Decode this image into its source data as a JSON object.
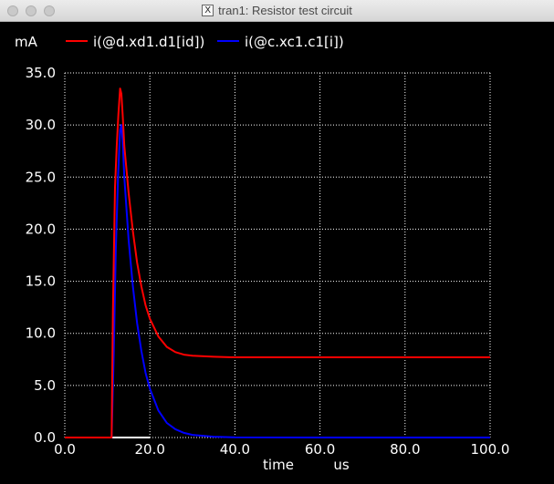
{
  "window": {
    "title": "tran1: Resistor test circuit",
    "x11_glyph": "X",
    "colors": {
      "background": "#000000",
      "text": "#ffffff",
      "titlebar": "#e4e4e4"
    }
  },
  "chart_data": {
    "type": "line",
    "title": "",
    "ylabel": "mA",
    "xlabel": "time",
    "xunit": "us",
    "xlim": [
      0,
      100
    ],
    "ylim": [
      0,
      35
    ],
    "x_ticks": [
      0,
      20,
      40,
      60,
      80,
      100
    ],
    "y_ticks": [
      0,
      5,
      10,
      15,
      20,
      25,
      30,
      35
    ],
    "x_tick_labels": [
      "0.0",
      "20.0",
      "40.0",
      "60.0",
      "80.0",
      "100.0"
    ],
    "y_tick_labels": [
      "0.0",
      "5.0",
      "10.0",
      "15.0",
      "20.0",
      "25.0",
      "30.0",
      "35.0"
    ],
    "grid": true,
    "legend_position": "top",
    "series": [
      {
        "name": "i(@d.xd1.d1[id])",
        "color": "#ff0000",
        "x": [
          0,
          11,
          11.3,
          11.8,
          12.2,
          12.6,
          13.0,
          13.3,
          13.6,
          14,
          15,
          16,
          17,
          18,
          19,
          20,
          22,
          24,
          26,
          28,
          30,
          35,
          40,
          60,
          80,
          100
        ],
        "y": [
          0,
          0,
          12,
          24,
          28,
          31,
          33.5,
          33,
          31,
          28,
          23.5,
          19.8,
          16.8,
          14.5,
          12.7,
          11.4,
          9.7,
          8.7,
          8.2,
          7.95,
          7.85,
          7.75,
          7.7,
          7.7,
          7.7,
          7.7
        ]
      },
      {
        "name": "i(@c.xc1.c1[i])",
        "color": "#0000ff",
        "x": [
          0,
          11,
          11.5,
          12.0,
          12.5,
          13.0,
          13.3,
          13.6,
          14,
          15,
          16,
          17,
          18,
          19,
          20,
          22,
          24,
          26,
          28,
          30,
          35,
          40,
          60,
          80,
          100
        ],
        "y": [
          0,
          0,
          8,
          18,
          25,
          29.5,
          30,
          28.5,
          25,
          19,
          14.5,
          11,
          8.3,
          6.2,
          4.7,
          2.6,
          1.4,
          0.8,
          0.45,
          0.25,
          0.08,
          0.02,
          0,
          0,
          0
        ]
      },
      {
        "name": "",
        "color": "#ffffff",
        "x": [
          0,
          20
        ],
        "y": [
          0,
          0
        ]
      }
    ]
  }
}
